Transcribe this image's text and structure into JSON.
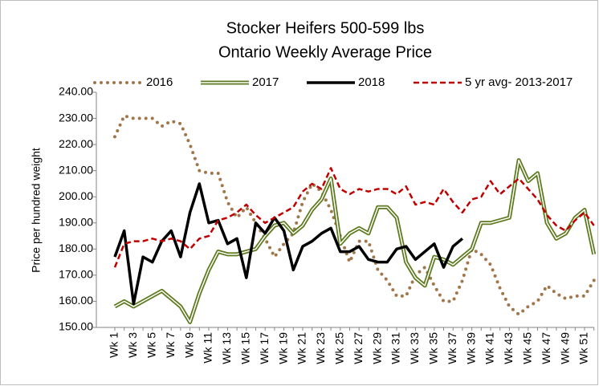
{
  "chart_data": {
    "type": "line",
    "title": "Stocker Heifers 500-599 lbs",
    "subtitle": "Ontario Weekly Average  Price",
    "y_label": "Price per hundred weight",
    "categories": [
      "Wk 1",
      null,
      "Wk 3",
      null,
      "Wk 5",
      null,
      "Wk 7",
      null,
      "Wk 9",
      null,
      "Wk 11",
      null,
      "Wk 13",
      null,
      "Wk 15",
      null,
      "Wk 17",
      null,
      "Wk 19",
      null,
      "Wk 21",
      null,
      "Wk 23",
      null,
      "Wk 25",
      null,
      "Wk 27",
      null,
      "Wk 29",
      null,
      "Wk 31",
      null,
      "Wk 33",
      null,
      "Wk 35",
      null,
      "Wk 37",
      null,
      "Wk 39",
      null,
      "Wk 41",
      null,
      "Wk 43",
      null,
      "Wk 45",
      null,
      "Wk 47",
      null,
      "Wk 49",
      null,
      "Wk 51",
      null
    ],
    "ylim": [
      150,
      240
    ],
    "yticks": [
      {
        "value": 150,
        "label": "150.00"
      },
      {
        "value": 160,
        "label": "160.00"
      },
      {
        "value": 170,
        "label": "170.00"
      },
      {
        "value": 180,
        "label": "180.00"
      },
      {
        "value": 190,
        "label": "190.00"
      },
      {
        "value": 200,
        "label": "200.00"
      },
      {
        "value": 210,
        "label": "210.00"
      },
      {
        "value": 220,
        "label": "220.00"
      },
      {
        "value": 230,
        "label": "230.00"
      },
      {
        "value": 240,
        "label": "240.00"
      }
    ],
    "grid": false,
    "legend": "top",
    "series": [
      {
        "name": "2016",
        "color": "#a0764a",
        "style": "dotted",
        "values": [
          223,
          231,
          230,
          230,
          230,
          227,
          229,
          228,
          220,
          210,
          209,
          209,
          198,
          192,
          196,
          190,
          184,
          177,
          182,
          186,
          198,
          205,
          202,
          195,
          185,
          175,
          183,
          183,
          172,
          168,
          162,
          162,
          170,
          173,
          166,
          160,
          160,
          168,
          180,
          178,
          174,
          165,
          158,
          155,
          158,
          160,
          166,
          163,
          161,
          162,
          162,
          168
        ]
      },
      {
        "name": "2017",
        "color": "#5e7a1e",
        "style": "double",
        "values": [
          158,
          160,
          158,
          160,
          162,
          164,
          161,
          158,
          152,
          163,
          172,
          179,
          178,
          178,
          179,
          180,
          185,
          189,
          190,
          186,
          189,
          195,
          199,
          207,
          182,
          186,
          188,
          186,
          196,
          196,
          192,
          175,
          169,
          166,
          177,
          176,
          174,
          177,
          180,
          190,
          190,
          191,
          192,
          214,
          206,
          209,
          190,
          184,
          186,
          192,
          195,
          178
        ]
      },
      {
        "name": "2018",
        "color": "#000000",
        "style": "solid",
        "values": [
          177,
          187,
          159,
          177,
          175,
          183,
          187,
          177,
          194,
          205,
          190,
          191,
          182,
          184,
          169,
          190,
          186,
          192,
          187,
          172,
          181,
          183,
          186,
          188,
          179,
          179,
          181,
          176,
          175,
          175,
          180,
          181,
          176,
          179,
          182,
          173,
          181,
          184,
          null,
          null,
          null,
          null,
          null,
          null,
          null,
          null,
          null,
          null,
          null,
          null,
          null,
          null
        ]
      },
      {
        "name": "5 yr avg- 2013-2017",
        "color": "#c00000",
        "style": "dashed",
        "values": [
          173,
          182,
          183,
          183,
          184,
          183,
          184,
          183,
          180,
          184,
          185,
          191,
          192,
          194,
          197,
          193,
          190,
          192,
          194,
          196,
          202,
          205,
          203,
          211,
          203,
          201,
          203,
          202,
          203,
          203,
          201,
          204,
          197,
          198,
          197,
          203,
          198,
          194,
          199,
          200,
          206,
          201,
          204,
          207,
          203,
          199,
          193,
          189,
          187,
          191,
          194,
          189
        ]
      }
    ]
  }
}
